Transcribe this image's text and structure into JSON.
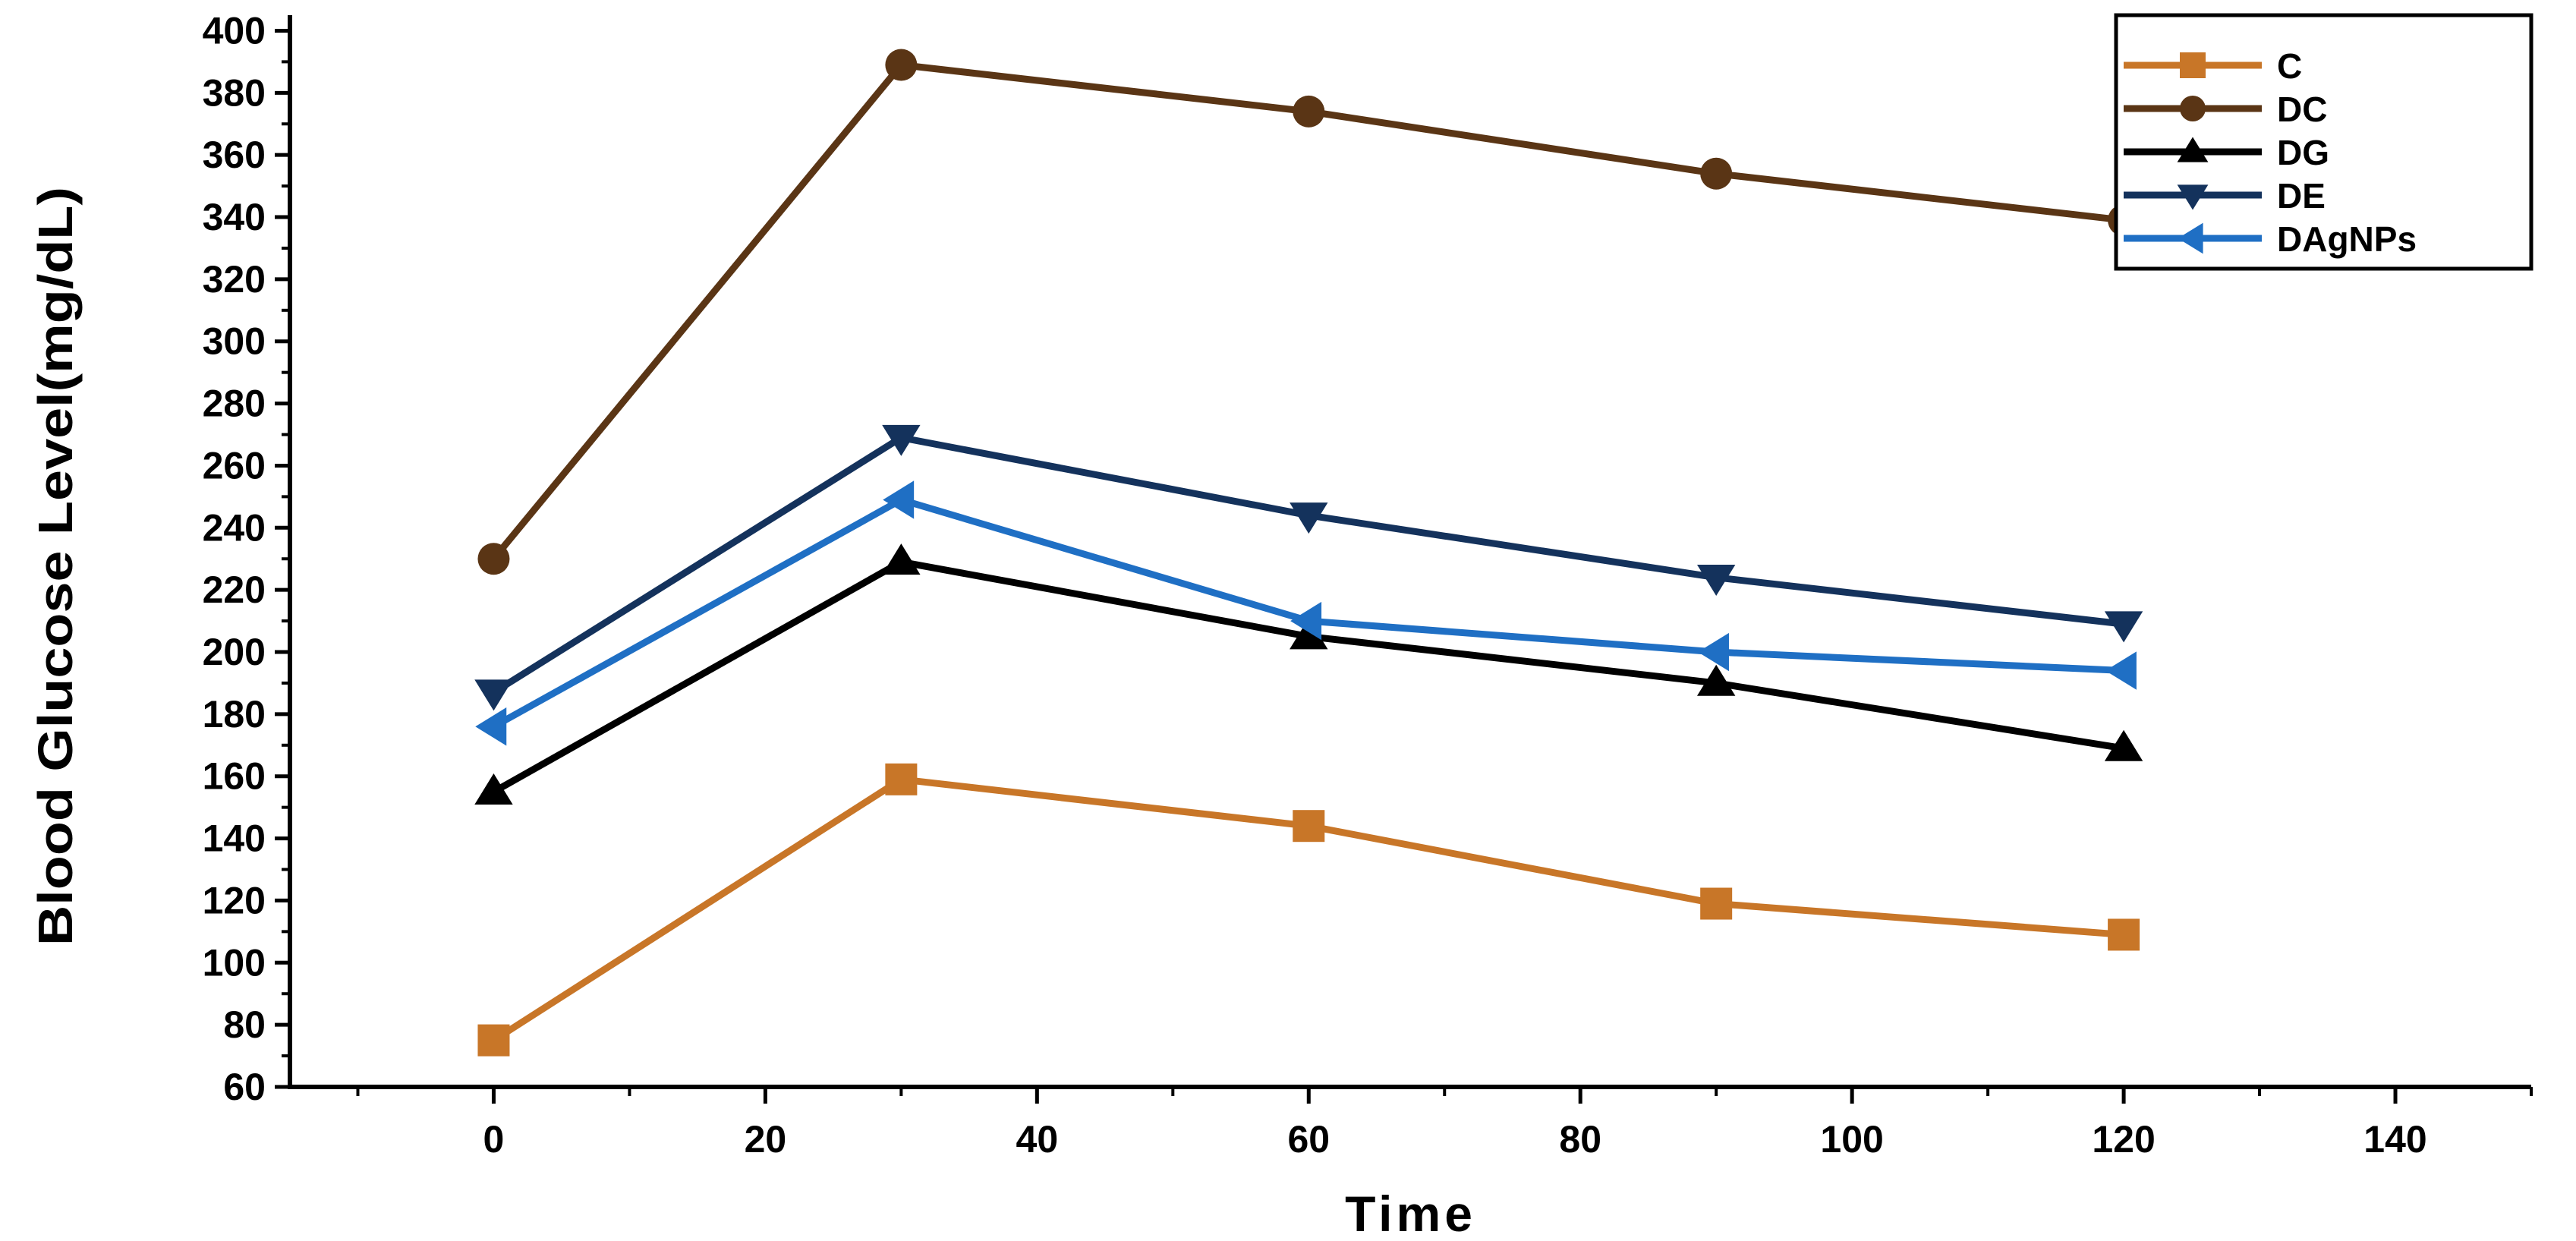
{
  "chart_data": {
    "type": "line",
    "title": "",
    "xlabel": "Time",
    "ylabel": "Blood Glucose Level(mg/dL)",
    "x": [
      0,
      30,
      60,
      90,
      120
    ],
    "xlim": [
      -15,
      150
    ],
    "ylim": [
      60,
      405
    ],
    "xticks": [
      0,
      20,
      40,
      60,
      80,
      100,
      120,
      140
    ],
    "yticks": [
      60,
      80,
      100,
      120,
      140,
      160,
      180,
      200,
      220,
      240,
      260,
      280,
      300,
      320,
      340,
      360,
      380,
      400
    ],
    "grid": false,
    "legend_position": "top-right",
    "series": [
      {
        "name": "C",
        "values": [
          75,
          159,
          144,
          119,
          109
        ],
        "color": "#c87628",
        "marker": "square"
      },
      {
        "name": "DC",
        "values": [
          230,
          389,
          374,
          354,
          339
        ],
        "color": "#5a3515",
        "marker": "circle"
      },
      {
        "name": "DG",
        "values": [
          155,
          229,
          205,
          190,
          169
        ],
        "color": "#000000",
        "marker": "triangle-up"
      },
      {
        "name": "DE",
        "values": [
          187,
          269,
          244,
          224,
          209
        ],
        "color": "#14325c",
        "marker": "triangle-down"
      },
      {
        "name": "DAgNPs",
        "values": [
          176,
          249,
          210,
          200,
          194
        ],
        "color": "#1f6fc4",
        "marker": "triangle-left"
      }
    ]
  }
}
